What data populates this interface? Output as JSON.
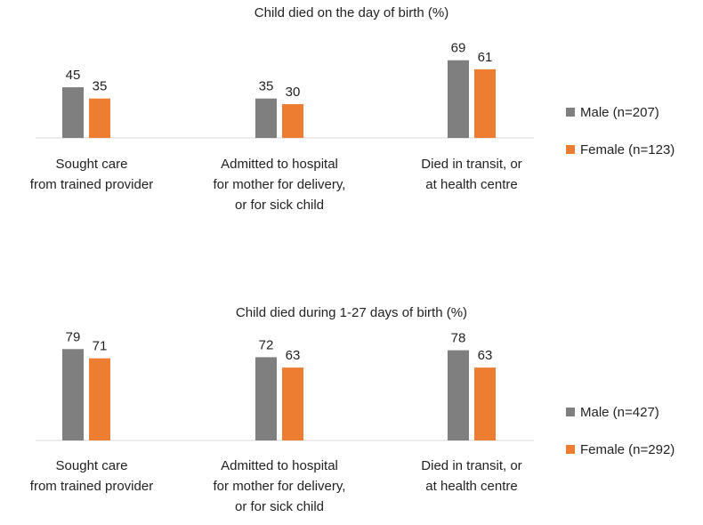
{
  "colors": {
    "male": "#7f7f7f",
    "female": "#ed7d31",
    "axis": "#d9d9d9"
  },
  "chart_data": [
    {
      "type": "bar",
      "title": "Child died on the day of birth (%)",
      "categories": [
        [
          "Sought care",
          "from trained provider"
        ],
        [
          "Admitted to hospital",
          "for mother for delivery,",
          "or for sick child"
        ],
        [
          "Died in transit, or",
          "at health centre"
        ]
      ],
      "series": [
        {
          "name": "Male (n=207)",
          "values": [
            45,
            35,
            69
          ]
        },
        {
          "name": "Female (n=123)",
          "values": [
            35,
            30,
            61
          ]
        }
      ],
      "ylim": [
        0,
        75
      ],
      "legend": "right"
    },
    {
      "type": "bar",
      "title": "Child died during 1-27 days of birth (%)",
      "categories": [
        [
          "Sought care",
          "from trained provider"
        ],
        [
          "Admitted to hospital",
          "for mother for delivery,",
          "or for sick child"
        ],
        [
          "Died in transit, or",
          "at health centre"
        ]
      ],
      "series": [
        {
          "name": "Male (n=427)",
          "values": [
            79,
            72,
            78
          ]
        },
        {
          "name": "Female (n=292)",
          "values": [
            71,
            63,
            63
          ]
        }
      ],
      "ylim": [
        0,
        85
      ],
      "legend": "right"
    }
  ]
}
